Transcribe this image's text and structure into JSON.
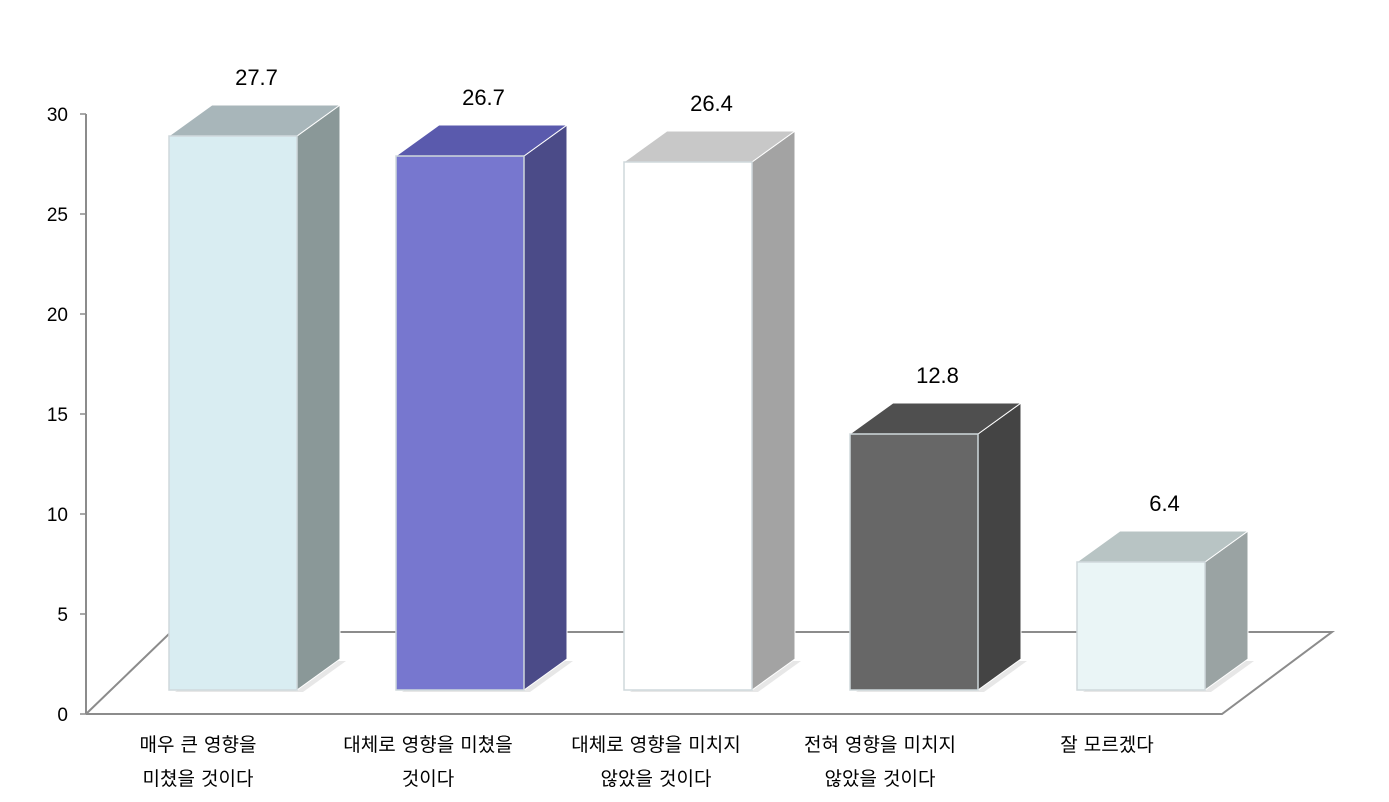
{
  "chart_data": {
    "type": "bar",
    "style": "3d-column",
    "categories": [
      [
        "매우 큰 영향을",
        "미쳤을 것이다"
      ],
      [
        "대체로 영향을 미쳤을",
        "것이다"
      ],
      [
        "대체로 영향을 미치지",
        "않았을 것이다"
      ],
      [
        "전혀 영향을 미치지",
        "않았을 것이다"
      ],
      [
        "잘 모르겠다",
        ""
      ]
    ],
    "values": [
      27.7,
      26.7,
      26.4,
      12.8,
      6.4
    ],
    "value_labels": [
      "27.7",
      "26.7",
      "26.4",
      "12.8",
      "6.4"
    ],
    "y_ticks": [
      "0",
      "5",
      "10",
      "15",
      "20",
      "25",
      "30"
    ],
    "ylim": [
      0,
      30
    ],
    "grid": false,
    "legend": "none",
    "colors": [
      {
        "front": "#d9edf2",
        "top": "#a8b6ba",
        "side": "#8a9898"
      },
      {
        "front": "#7777cf",
        "top": "#5a5aad",
        "side": "#4b4b88"
      },
      {
        "front": "#ffffff",
        "top": "#c8c8c8",
        "side": "#a3a3a3"
      },
      {
        "front": "#676767",
        "top": "#4f4f4f",
        "side": "#444444"
      },
      {
        "front": "#eaf5f6",
        "top": "#b8c4c4",
        "side": "#9aa3a3"
      }
    ]
  }
}
